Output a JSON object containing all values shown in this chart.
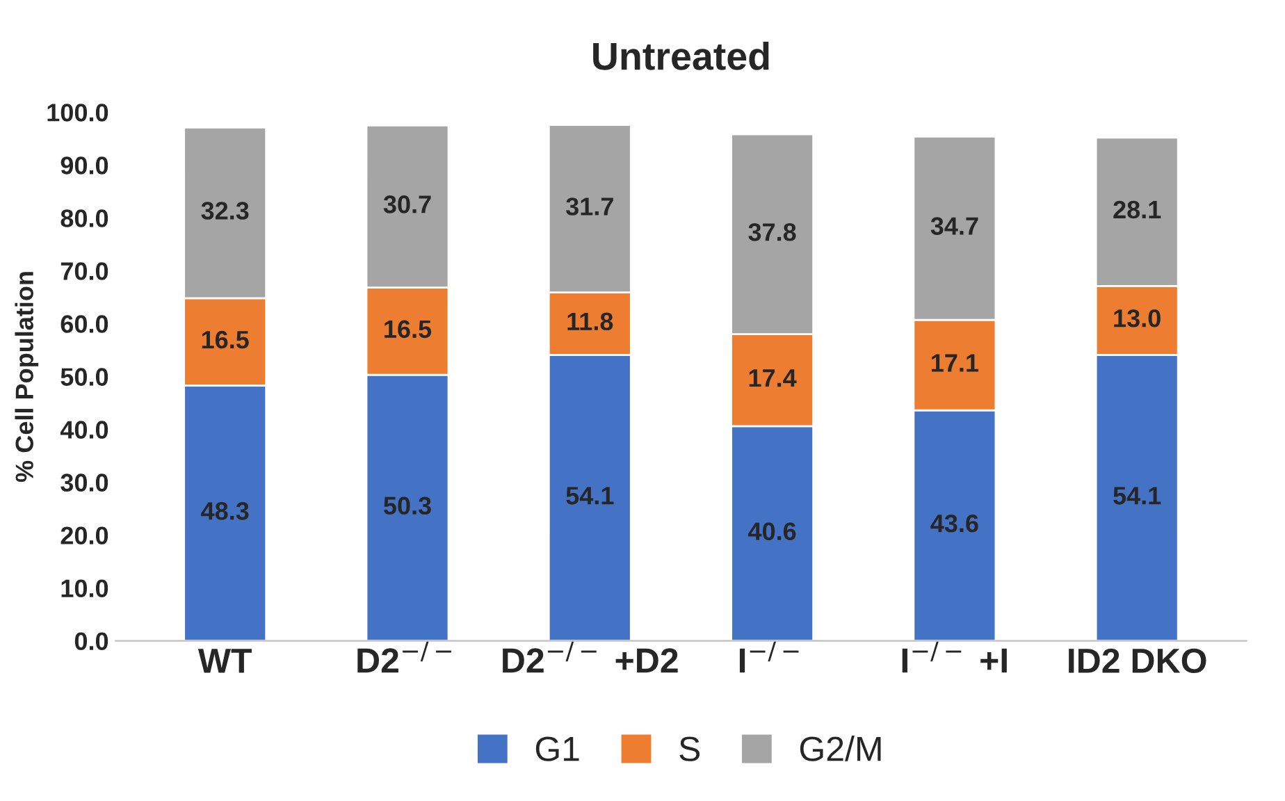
{
  "chart_data": {
    "type": "bar",
    "title": "Untreated",
    "ylabel": "% Cell Population",
    "stacked": true,
    "legend": "bottom",
    "grid": false,
    "categories": [
      "WT",
      "D2$^{−/−}$",
      "D2$^{−/−}$ +D2",
      "I$^{−/−}$",
      "I$^{−/−}$ +I",
      "ID2 DKO"
    ],
    "ylim": [
      0,
      100
    ],
    "yticks": [
      {
        "value": 0,
        "label": "0.0"
      },
      {
        "value": 10,
        "label": "10.0"
      },
      {
        "value": 20,
        "label": "20.0"
      },
      {
        "value": 30,
        "label": "30.0"
      },
      {
        "value": 40,
        "label": "40.0"
      },
      {
        "value": 50,
        "label": "50.0"
      },
      {
        "value": 60,
        "label": "60.0"
      },
      {
        "value": 70,
        "label": "70.0"
      },
      {
        "value": 80,
        "label": "80.0"
      },
      {
        "value": 90,
        "label": "90.0"
      },
      {
        "value": 100,
        "label": "100.0"
      }
    ],
    "series": [
      {
        "name": "G1",
        "color": "#4472c4",
        "values": [
          48.3,
          50.3,
          54.1,
          40.6,
          43.6,
          54.1
        ],
        "value_labels": [
          "48.3",
          "50.3",
          "54.1",
          "40.6",
          "43.6",
          "54.1"
        ]
      },
      {
        "name": "S",
        "color": "#ed7d31",
        "values": [
          16.5,
          16.5,
          11.8,
          17.4,
          17.1,
          13.0
        ],
        "value_labels": [
          "16.5",
          "16.5",
          "11.8",
          "17.4",
          "17.1",
          "13.0"
        ]
      },
      {
        "name": "G2/M",
        "color": "#a5a5a5",
        "values": [
          32.3,
          30.7,
          31.7,
          37.8,
          34.7,
          28.1
        ],
        "value_labels": [
          "32.3",
          "30.7",
          "31.7",
          "37.8",
          "34.7",
          "28.1"
        ]
      }
    ]
  }
}
